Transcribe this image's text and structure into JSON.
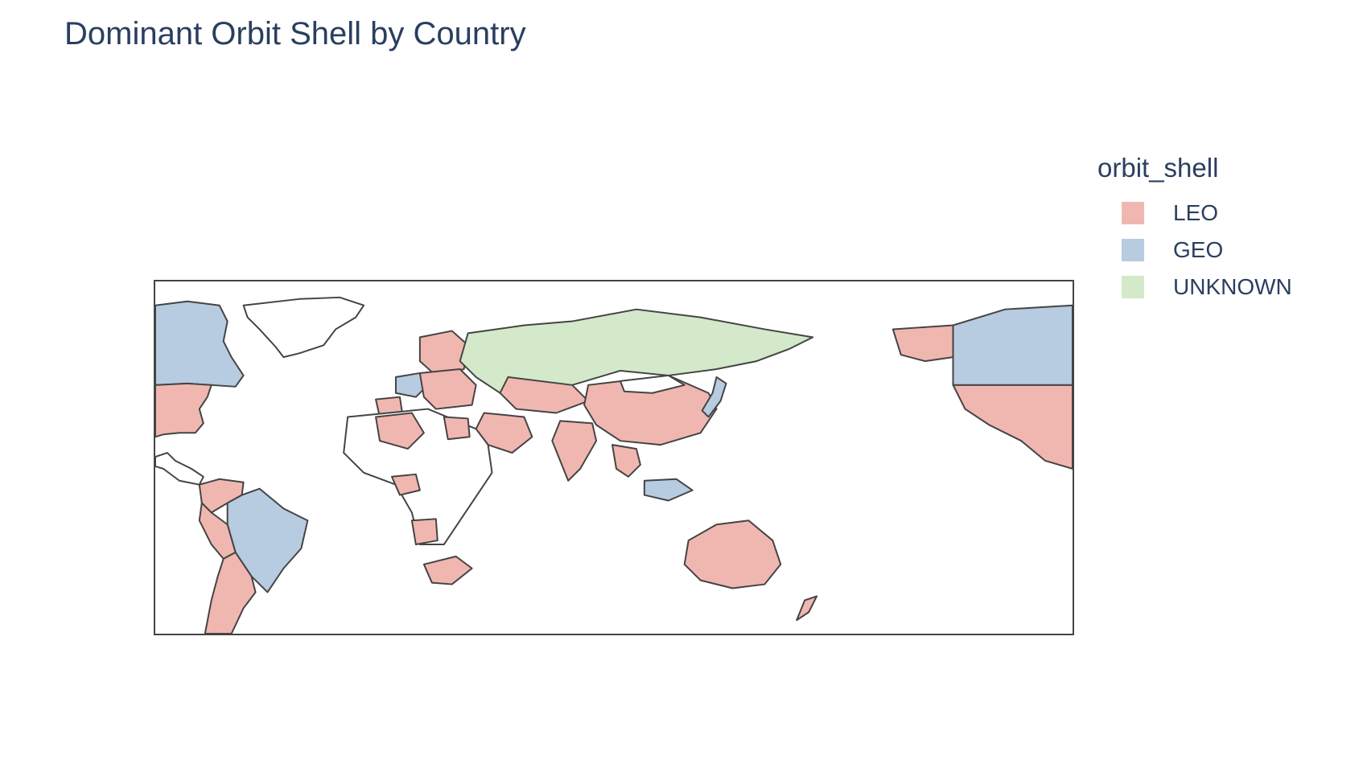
{
  "title": "Dominant Orbit Shell by Country",
  "legend": {
    "title": "orbit_shell",
    "items": [
      {
        "label": "LEO",
        "color": "#f0b7b0"
      },
      {
        "label": "GEO",
        "color": "#b7cbe1"
      },
      {
        "label": "UNKNOWN",
        "color": "#d3e9c9"
      }
    ]
  },
  "colors": {
    "none": "#ffffff",
    "border": "#444444"
  },
  "map_data": {
    "type": "choropleth",
    "colorscale_field": "orbit_shell",
    "countries": [
      {
        "name": "United States",
        "orbit_shell": "LEO"
      },
      {
        "name": "Canada",
        "orbit_shell": "GEO"
      },
      {
        "name": "Alaska (United States)",
        "orbit_shell": "LEO"
      },
      {
        "name": "Mexico",
        "orbit_shell": "LEO"
      },
      {
        "name": "Brazil",
        "orbit_shell": "GEO"
      },
      {
        "name": "Argentina",
        "orbit_shell": "LEO"
      },
      {
        "name": "Chile",
        "orbit_shell": "LEO"
      },
      {
        "name": "Peru",
        "orbit_shell": "LEO"
      },
      {
        "name": "Colombia",
        "orbit_shell": "LEO"
      },
      {
        "name": "Venezuela",
        "orbit_shell": "LEO"
      },
      {
        "name": "Bolivia",
        "orbit_shell": "GEO"
      },
      {
        "name": "Russia",
        "orbit_shell": "UNKNOWN"
      },
      {
        "name": "China",
        "orbit_shell": "LEO"
      },
      {
        "name": "India",
        "orbit_shell": "LEO"
      },
      {
        "name": "Japan",
        "orbit_shell": "GEO"
      },
      {
        "name": "Indonesia",
        "orbit_shell": "GEO"
      },
      {
        "name": "Australia",
        "orbit_shell": "LEO"
      },
      {
        "name": "New Zealand",
        "orbit_shell": "LEO"
      },
      {
        "name": "France",
        "orbit_shell": "GEO"
      },
      {
        "name": "Spain",
        "orbit_shell": "LEO"
      },
      {
        "name": "Saudi Arabia",
        "orbit_shell": "LEO"
      },
      {
        "name": "Egypt",
        "orbit_shell": "LEO"
      },
      {
        "name": "Algeria",
        "orbit_shell": "LEO"
      },
      {
        "name": "Nigeria",
        "orbit_shell": "LEO"
      },
      {
        "name": "Angola",
        "orbit_shell": "LEO"
      },
      {
        "name": "South Africa",
        "orbit_shell": "LEO"
      },
      {
        "name": "Kazakhstan",
        "orbit_shell": "LEO"
      },
      {
        "name": "Greenland",
        "orbit_shell": "none"
      }
    ]
  }
}
